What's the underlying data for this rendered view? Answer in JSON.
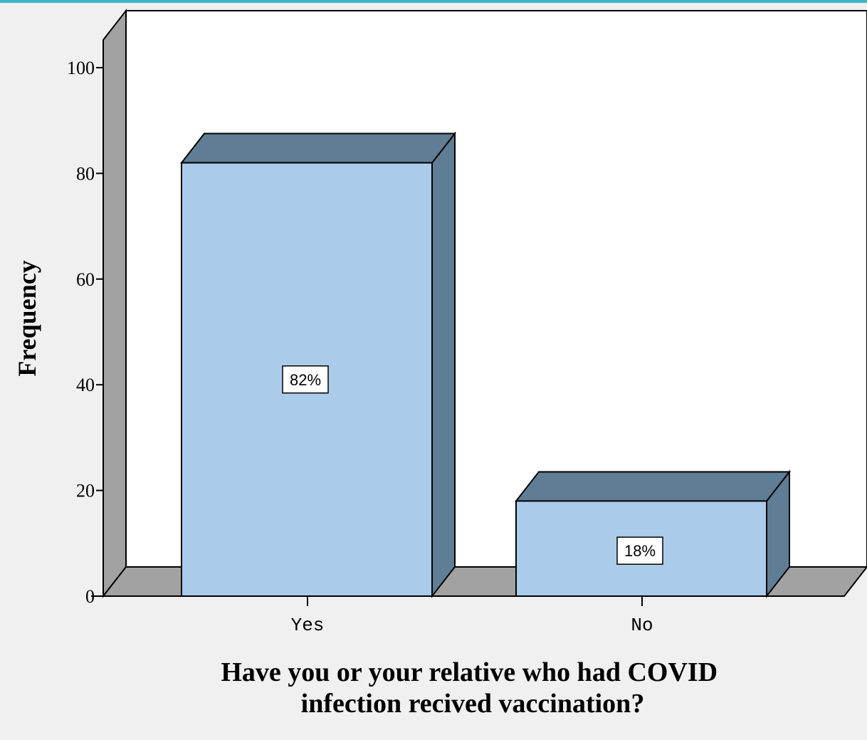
{
  "chart_data": {
    "type": "bar",
    "categories": [
      "Yes",
      "No"
    ],
    "values": [
      82,
      18
    ],
    "data_labels": [
      "82%",
      "18%"
    ],
    "xlabel_lines": [
      "Have you or your relative who had COVID",
      "infection recived vaccination?"
    ],
    "ylabel": "Frequency",
    "yticks": [
      0,
      20,
      40,
      60,
      80,
      100
    ],
    "ylim": [
      0,
      105
    ],
    "grid": false,
    "legend": "none",
    "style": "3d",
    "colors": {
      "bar_front": "#abcbeb",
      "bar_top_side": "#5f7d94",
      "wall_side": "#a2a2a2",
      "plot_background": "#ffffff",
      "page_background": "#f0f0f0",
      "top_border": "#3bb6c8"
    }
  }
}
